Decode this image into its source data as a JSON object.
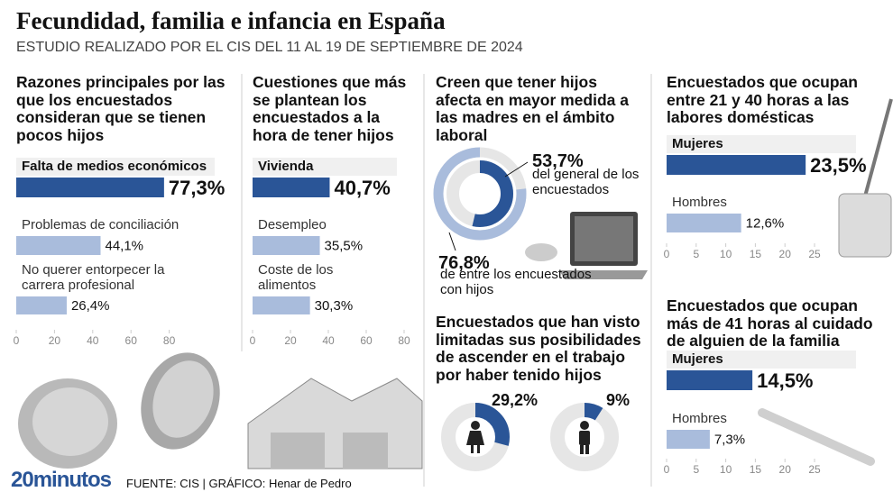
{
  "header": {
    "title": "Fecundidad, familia e infancia en España",
    "subtitle": "ESTUDIO REALIZADO POR EL CIS DEL 11 AL 19 DE SEPTIEMBRE DE 2024"
  },
  "chart_data": [
    {
      "type": "bar",
      "orientation": "horizontal",
      "title": "Razones principales por las que los encuestados consideran que se tienen pocos hijos",
      "categories": [
        "Falta de medios económicos",
        "Problemas de conciliación",
        "No querer entorpecer la carrera profesional"
      ],
      "values": [
        77.3,
        44.1,
        26.4
      ],
      "value_labels": [
        "77,3%",
        "44,1%",
        "26,4%"
      ],
      "colors": [
        "#2a5597",
        "#a9bcdc",
        "#a9bcdc"
      ],
      "xlim": [
        0,
        100
      ],
      "xticks": [
        0,
        20,
        40,
        60,
        80
      ]
    },
    {
      "type": "bar",
      "orientation": "horizontal",
      "title": "Cuestiones que más se plantean los encuestados a la hora de tener hijos",
      "categories": [
        "Vivienda",
        "Desempleo",
        "Coste de los alimentos"
      ],
      "values": [
        40.7,
        35.5,
        30.3
      ],
      "value_labels": [
        "40,7%",
        "35,5%",
        "30,3%"
      ],
      "colors": [
        "#2a5597",
        "#a9bcdc",
        "#a9bcdc"
      ],
      "xlim": [
        0,
        100
      ],
      "xticks": [
        0,
        20,
        40,
        60,
        80
      ]
    },
    {
      "type": "donut",
      "title": "Creen que tener hijos afecta en mayor medida a las madres en el ámbito laboral",
      "categories": [
        "del general de los encuestados",
        "de entre los encuestados con hijos"
      ],
      "values": [
        53.7,
        76.8
      ],
      "value_labels": [
        "53,7%",
        "76,8%"
      ],
      "colors": [
        "#2a5597",
        "#a9bcdc"
      ]
    },
    {
      "type": "donut",
      "title": "Encuestados que han visto limitadas sus posibilidades de ascender en el trabajo por haber tenido hijos",
      "values": [
        29.2,
        9
      ],
      "value_labels": [
        "29,2%",
        "9%"
      ],
      "colors": [
        "#2a5597",
        "#2a5597"
      ]
    },
    {
      "type": "bar",
      "orientation": "horizontal",
      "title": "Encuestados que ocupan entre 21 y 40 horas a las labores domésticas",
      "categories": [
        "Mujeres",
        "Hombres"
      ],
      "values": [
        23.5,
        12.6
      ],
      "value_labels": [
        "23,5%",
        "12,6%"
      ],
      "colors": [
        "#2a5597",
        "#a9bcdc"
      ],
      "xlim": [
        0,
        25
      ],
      "xticks": [
        0,
        5,
        10,
        15,
        20,
        25
      ]
    },
    {
      "type": "bar",
      "orientation": "horizontal",
      "title": "Encuestados que ocupan más de 41 horas al cuidado de alguien de la familia",
      "categories": [
        "Mujeres",
        "Hombres"
      ],
      "values": [
        14.5,
        7.3
      ],
      "value_labels": [
        "14,5%",
        "7,3%"
      ],
      "colors": [
        "#2a5597",
        "#a9bcdc"
      ],
      "xlim": [
        0,
        25
      ],
      "xticks": [
        0,
        5,
        10,
        15,
        20,
        25
      ]
    }
  ],
  "footer": {
    "logo": "20minutos",
    "source": "FUENTE: CIS  |  GRÁFICO: Henar de Pedro"
  }
}
